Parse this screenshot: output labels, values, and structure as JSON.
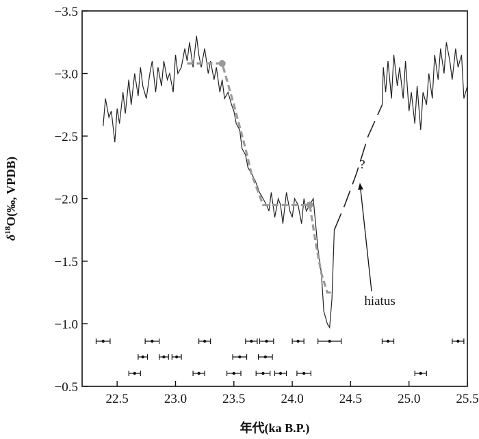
{
  "chart_data": {
    "type": "line",
    "xlabel": "年代(ka B.P.)",
    "ylabel": "δ18O(‰, VPDB)",
    "ylabel_parts": {
      "delta": "δ",
      "sup": "18",
      "rest": "O(‰, VPDB)"
    },
    "xlim": [
      22.2,
      25.5
    ],
    "ylim": [
      -3.5,
      -0.5
    ],
    "y_inverted": true,
    "x_ticks": [
      22.5,
      23.0,
      23.5,
      24.0,
      24.5,
      25.0,
      25.5
    ],
    "x_tick_labels": [
      "22.5",
      "23.0",
      "23.5",
      "24.0",
      "24.5",
      "25.0",
      "25.5"
    ],
    "y_ticks": [
      -3.5,
      -3.0,
      -2.5,
      -2.0,
      -1.5,
      -1.0,
      -0.5
    ],
    "y_tick_labels": [
      "−3.5",
      "−3.0",
      "−2.5",
      "−2.0",
      "−1.5",
      "−1.0",
      "−0.5"
    ],
    "grid": false,
    "series": [
      {
        "style": "solid-black",
        "x": [
          22.38,
          22.4,
          22.43,
          22.45,
          22.48,
          22.5,
          22.52,
          22.55,
          22.57,
          22.6,
          22.62,
          22.65,
          22.68,
          22.7,
          22.72,
          22.75,
          22.78,
          22.8,
          22.83,
          22.85,
          22.88,
          22.9,
          22.93,
          22.95,
          22.98,
          23.0,
          23.02,
          23.05,
          23.08,
          23.1,
          23.12,
          23.15,
          23.18,
          23.2,
          23.22,
          23.25,
          23.28,
          23.3,
          23.33,
          23.35,
          23.38,
          23.4,
          23.42,
          23.45,
          23.48,
          23.5,
          23.52,
          23.55,
          23.57,
          23.6,
          23.62,
          23.65,
          23.68,
          23.7,
          23.72,
          23.75,
          23.78,
          23.8,
          23.82,
          23.85,
          23.88,
          23.9,
          23.92,
          23.95,
          23.98,
          24.0,
          24.02,
          24.05,
          24.08,
          24.1,
          24.12,
          24.15,
          24.18,
          24.2,
          24.22,
          24.25,
          24.27,
          24.3,
          24.32,
          24.34,
          24.36
        ],
        "y": [
          -2.58,
          -2.8,
          -2.65,
          -2.7,
          -2.45,
          -2.72,
          -2.6,
          -2.85,
          -2.68,
          -2.95,
          -2.75,
          -3.0,
          -2.82,
          -3.05,
          -2.9,
          -2.8,
          -3.0,
          -3.1,
          -2.85,
          -3.05,
          -2.9,
          -3.1,
          -2.95,
          -3.0,
          -2.85,
          -3.15,
          -3.0,
          -3.05,
          -3.2,
          -3.1,
          -3.25,
          -3.05,
          -3.3,
          -3.15,
          -3.05,
          -3.2,
          -3.0,
          -3.1,
          -2.95,
          -3.05,
          -2.85,
          -2.95,
          -2.8,
          -2.85,
          -2.75,
          -2.7,
          -2.6,
          -2.55,
          -2.4,
          -2.35,
          -2.25,
          -2.2,
          -2.15,
          -2.1,
          -2.05,
          -2.0,
          -1.95,
          -1.9,
          -2.05,
          -1.85,
          -2.0,
          -1.95,
          -1.8,
          -2.05,
          -1.9,
          -1.85,
          -2.0,
          -1.95,
          -1.8,
          -2.0,
          -1.9,
          -1.95,
          -2.0,
          -1.8,
          -1.6,
          -1.4,
          -1.1,
          -1.0,
          -0.97,
          -1.2,
          -1.75
        ]
      },
      {
        "style": "solid-black",
        "x": [
          24.77,
          24.78,
          24.8,
          24.82,
          24.85,
          24.87,
          24.9,
          24.92,
          24.95,
          24.97,
          25.0,
          25.02,
          25.05,
          25.07,
          25.1,
          25.12,
          25.15,
          25.17,
          25.2,
          25.22,
          25.25,
          25.27,
          25.3,
          25.32,
          25.35,
          25.37,
          25.4,
          25.42,
          25.45,
          25.47,
          25.5
        ],
        "y": [
          -2.75,
          -3.05,
          -2.85,
          -3.1,
          -2.8,
          -3.15,
          -2.9,
          -3.05,
          -2.8,
          -3.1,
          -2.7,
          -2.85,
          -2.6,
          -2.9,
          -2.55,
          -2.85,
          -2.75,
          -3.0,
          -2.8,
          -3.15,
          -2.95,
          -3.2,
          -3.0,
          -3.25,
          -3.1,
          -2.95,
          -3.2,
          -3.05,
          -3.15,
          -2.8,
          -2.9
        ]
      },
      {
        "style": "dashed-gap",
        "x": [
          24.36,
          24.45,
          24.55,
          24.65,
          24.77
        ],
        "y": [
          -1.75,
          -1.95,
          -2.2,
          -2.5,
          -2.75
        ]
      },
      {
        "style": "dashed-gray-fit",
        "x": [
          23.1,
          23.4,
          23.5,
          23.6,
          23.65,
          23.75,
          23.85,
          24.15,
          24.2,
          24.25,
          24.3,
          24.34
        ],
        "y": [
          -3.08,
          -3.08,
          -2.75,
          -2.4,
          -2.2,
          -1.95,
          -1.95,
          -1.95,
          -1.65,
          -1.4,
          -1.25,
          -1.25
        ]
      }
    ],
    "fit_markers": [
      {
        "x": 23.4,
        "y": -3.08
      },
      {
        "x": 24.15,
        "y": -1.95
      }
    ],
    "age_errorbars": [
      {
        "x": 22.38,
        "err": 0.06,
        "row": 1
      },
      {
        "x": 22.8,
        "err": 0.06,
        "row": 1
      },
      {
        "x": 23.25,
        "err": 0.05,
        "row": 1
      },
      {
        "x": 23.65,
        "err": 0.05,
        "row": 1
      },
      {
        "x": 23.78,
        "err": 0.06,
        "row": 1
      },
      {
        "x": 24.05,
        "err": 0.05,
        "row": 1
      },
      {
        "x": 24.32,
        "err": 0.1,
        "row": 1
      },
      {
        "x": 24.82,
        "err": 0.05,
        "row": 1
      },
      {
        "x": 25.42,
        "err": 0.05,
        "row": 1
      },
      {
        "x": 22.72,
        "err": 0.04,
        "row": 2
      },
      {
        "x": 22.9,
        "err": 0.04,
        "row": 2
      },
      {
        "x": 23.01,
        "err": 0.04,
        "row": 2
      },
      {
        "x": 23.55,
        "err": 0.06,
        "row": 2
      },
      {
        "x": 23.77,
        "err": 0.06,
        "row": 2
      },
      {
        "x": 22.65,
        "err": 0.05,
        "row": 3
      },
      {
        "x": 23.2,
        "err": 0.05,
        "row": 3
      },
      {
        "x": 23.5,
        "err": 0.06,
        "row": 3
      },
      {
        "x": 23.75,
        "err": 0.06,
        "row": 3
      },
      {
        "x": 23.9,
        "err": 0.05,
        "row": 3
      },
      {
        "x": 24.1,
        "err": 0.06,
        "row": 3
      },
      {
        "x": 25.1,
        "err": 0.05,
        "row": 3
      }
    ],
    "annotations": [
      {
        "text": "?",
        "x": 24.6,
        "y": -2.24
      },
      {
        "text": "hiatus",
        "x": 24.75,
        "y": -1.15,
        "arrow_to": {
          "x": 24.58,
          "y": -2.12
        }
      }
    ]
  }
}
